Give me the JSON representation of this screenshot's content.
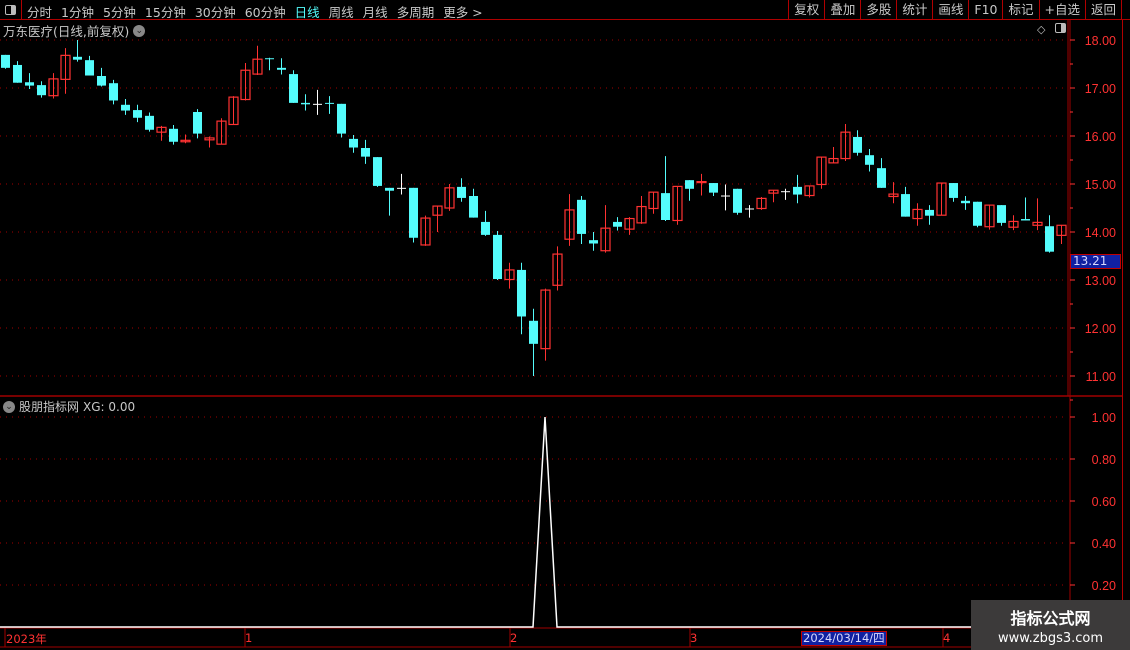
{
  "toolbar": {
    "periods": [
      "分时",
      "1分钟",
      "5分钟",
      "15分钟",
      "30分钟",
      "60分钟",
      "日线",
      "周线",
      "月线",
      "多周期",
      "更多 >"
    ],
    "active_period": "日线",
    "buttons": [
      "复权",
      "叠加",
      "多股",
      "统计",
      "画线",
      "F10",
      "标记",
      "+自选",
      "返回"
    ]
  },
  "main_panel": {
    "title": "万东医疗(日线,前复权)",
    "y_ticks": [
      "18.00",
      "17.00",
      "16.00",
      "15.00",
      "14.00",
      "13.00",
      "12.00",
      "11.00"
    ],
    "current_price_label": "13.21"
  },
  "indicator_panel": {
    "title": "股朋指标网",
    "readout": "XG: 0.00",
    "y_ticks": [
      "1.00",
      "0.80",
      "0.60",
      "0.40",
      "0.20"
    ]
  },
  "x_axis": {
    "labels": [
      "2023年",
      "1",
      "2",
      "3",
      "4"
    ],
    "cursor_date": "2024/03/14/四"
  },
  "watermark": {
    "line1": "指标公式网",
    "line2": "www.zbgs3.com"
  },
  "colors": {
    "up": "#ff3232",
    "down": "#54fcfc",
    "flat": "#ffffff",
    "grid": "#a00000",
    "axis_text": "#ff3232",
    "active": "#54fcfc"
  },
  "chart_data": {
    "type": "candlestick",
    "ylim": [
      10.7,
      18.4
    ],
    "ohlc": [
      [
        17.69,
        17.69,
        17.4,
        17.42
      ],
      [
        17.48,
        17.56,
        17.11,
        17.11
      ],
      [
        17.12,
        17.31,
        16.98,
        17.05
      ],
      [
        17.06,
        17.14,
        16.8,
        16.85
      ],
      [
        16.84,
        17.31,
        16.78,
        17.19
      ],
      [
        17.18,
        17.83,
        16.88,
        17.68
      ],
      [
        17.65,
        18.0,
        17.55,
        17.59
      ],
      [
        17.58,
        17.67,
        17.26,
        17.26
      ],
      [
        17.25,
        17.42,
        17.03,
        17.05
      ],
      [
        17.1,
        17.17,
        16.66,
        16.74
      ],
      [
        16.65,
        16.77,
        16.44,
        16.53
      ],
      [
        16.54,
        16.65,
        16.29,
        16.38
      ],
      [
        16.42,
        16.49,
        16.09,
        16.13
      ],
      [
        16.08,
        16.21,
        15.9,
        16.18
      ],
      [
        16.15,
        16.23,
        15.82,
        15.88
      ],
      [
        15.88,
        16.03,
        15.85,
        15.91
      ],
      [
        16.5,
        16.56,
        15.95,
        16.05
      ],
      [
        15.92,
        15.99,
        15.76,
        15.96
      ],
      [
        15.83,
        16.37,
        15.83,
        16.31
      ],
      [
        16.24,
        16.83,
        16.24,
        16.81
      ],
      [
        16.76,
        17.52,
        16.74,
        17.37
      ],
      [
        17.29,
        17.88,
        17.27,
        17.6
      ],
      [
        17.62,
        17.63,
        17.37,
        17.6
      ],
      [
        17.42,
        17.62,
        17.28,
        17.38
      ],
      [
        17.29,
        17.37,
        16.69,
        16.69
      ],
      [
        16.69,
        16.87,
        16.53,
        16.66
      ],
      [
        16.67,
        16.96,
        16.44,
        16.67
      ],
      [
        16.69,
        16.83,
        16.46,
        16.67
      ],
      [
        16.67,
        16.67,
        15.97,
        16.05
      ],
      [
        15.94,
        16.02,
        15.65,
        15.76
      ],
      [
        15.75,
        15.92,
        15.42,
        15.57
      ],
      [
        15.56,
        15.56,
        14.94,
        14.96
      ],
      [
        14.92,
        14.92,
        14.34,
        14.86
      ],
      [
        14.92,
        15.21,
        14.78,
        14.92
      ],
      [
        14.92,
        14.92,
        13.78,
        13.88
      ],
      [
        13.73,
        14.34,
        13.71,
        14.29
      ],
      [
        14.35,
        14.54,
        14.0,
        14.54
      ],
      [
        14.5,
        15.0,
        14.44,
        14.92
      ],
      [
        14.94,
        15.12,
        14.63,
        14.71
      ],
      [
        14.75,
        14.9,
        14.3,
        14.3
      ],
      [
        14.21,
        14.44,
        13.92,
        13.94
      ],
      [
        13.94,
        14.02,
        13.0,
        13.02
      ],
      [
        13.01,
        13.36,
        12.82,
        13.21
      ],
      [
        13.21,
        13.36,
        11.87,
        12.24
      ],
      [
        12.15,
        12.4,
        11.0,
        11.67
      ],
      [
        11.57,
        12.82,
        11.32,
        12.79
      ],
      [
        12.89,
        13.7,
        12.78,
        13.54
      ],
      [
        13.85,
        14.79,
        13.71,
        14.46
      ],
      [
        14.67,
        14.75,
        13.75,
        13.96
      ],
      [
        13.83,
        14.0,
        13.61,
        13.76
      ],
      [
        13.61,
        14.56,
        13.57,
        14.08
      ],
      [
        14.21,
        14.31,
        14.03,
        14.11
      ],
      [
        14.06,
        14.31,
        13.94,
        14.28
      ],
      [
        14.19,
        14.75,
        14.17,
        14.53
      ],
      [
        14.49,
        14.83,
        14.38,
        14.83
      ],
      [
        14.81,
        15.58,
        14.23,
        14.25
      ],
      [
        14.24,
        14.95,
        14.15,
        14.95
      ],
      [
        15.08,
        15.08,
        14.65,
        14.9
      ],
      [
        15.03,
        15.21,
        14.76,
        15.05
      ],
      [
        15.02,
        15.02,
        14.75,
        14.82
      ],
      [
        14.76,
        14.99,
        14.45,
        14.76
      ],
      [
        14.9,
        14.9,
        14.36,
        14.4
      ],
      [
        14.49,
        14.56,
        14.3,
        14.49
      ],
      [
        14.49,
        14.73,
        14.46,
        14.7
      ],
      [
        14.81,
        14.87,
        14.62,
        14.87
      ],
      [
        14.85,
        14.9,
        14.67,
        14.85
      ],
      [
        14.94,
        15.19,
        14.6,
        14.78
      ],
      [
        14.76,
        14.96,
        14.72,
        14.96
      ],
      [
        14.99,
        15.56,
        14.9,
        15.56
      ],
      [
        15.44,
        15.77,
        15.44,
        15.53
      ],
      [
        15.53,
        16.25,
        15.48,
        16.08
      ],
      [
        15.98,
        16.12,
        15.59,
        15.65
      ],
      [
        15.6,
        15.73,
        15.26,
        15.4
      ],
      [
        15.33,
        15.54,
        14.92,
        14.92
      ],
      [
        14.74,
        15.04,
        14.6,
        14.79
      ],
      [
        14.79,
        14.94,
        14.32,
        14.32
      ],
      [
        14.28,
        14.6,
        14.13,
        14.47
      ],
      [
        14.46,
        14.56,
        14.15,
        14.34
      ],
      [
        14.35,
        15.02,
        14.35,
        15.02
      ],
      [
        15.02,
        15.02,
        14.63,
        14.71
      ],
      [
        14.65,
        14.75,
        14.46,
        14.6
      ],
      [
        14.63,
        14.63,
        14.1,
        14.13
      ],
      [
        14.11,
        14.56,
        14.05,
        14.56
      ],
      [
        14.56,
        14.56,
        14.13,
        14.19
      ],
      [
        14.1,
        14.35,
        14.04,
        14.22
      ],
      [
        14.27,
        14.72,
        14.24,
        14.24
      ],
      [
        14.14,
        14.7,
        14.04,
        14.2
      ],
      [
        14.12,
        14.35,
        13.57,
        13.59
      ],
      [
        13.93,
        14.14,
        13.75,
        14.14
      ]
    ],
    "indicator": {
      "name": "XG",
      "ylim": [
        0,
        1.05
      ],
      "spike_index": 45,
      "values_note_free": true
    }
  }
}
